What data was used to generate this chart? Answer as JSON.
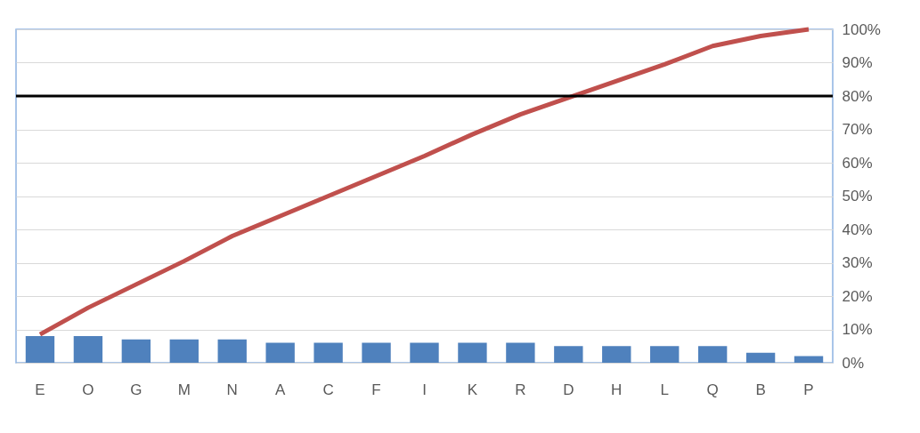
{
  "chart_data": {
    "type": "bar",
    "categories": [
      "E",
      "O",
      "G",
      "M",
      "N",
      "A",
      "C",
      "F",
      "I",
      "K",
      "R",
      "D",
      "H",
      "L",
      "Q",
      "B",
      "P"
    ],
    "series": [
      {
        "color": "#4f81bd",
        "values": [
          8,
          8,
          7,
          7,
          7,
          6,
          6,
          6,
          6,
          6,
          6,
          5,
          5,
          5,
          5,
          3,
          2
        ]
      },
      {
        "type": "line",
        "color": "#c0504d",
        "values": [
          8.5,
          16.5,
          23.5,
          30.5,
          38,
          44,
          50,
          56,
          62,
          68.5,
          74.5,
          79.5,
          84.5,
          89.5,
          95,
          98,
          100
        ]
      }
    ],
    "ylim": [
      0,
      100
    ],
    "yticks": [
      {
        "value": 0,
        "label": "0%"
      },
      {
        "value": 10,
        "label": "10%"
      },
      {
        "value": 20,
        "label": "20%"
      },
      {
        "value": 30,
        "label": "30%"
      },
      {
        "value": 40,
        "label": "40%"
      },
      {
        "value": 50,
        "label": "50%"
      },
      {
        "value": 60,
        "label": "60%"
      },
      {
        "value": 70,
        "label": "70%"
      },
      {
        "value": 80,
        "label": "80%"
      },
      {
        "value": 90,
        "label": "90%"
      },
      {
        "value": 100,
        "label": "100%"
      }
    ],
    "grid": "y",
    "ref_lines": [
      {
        "axis": "y",
        "value": 80,
        "color": "#000000"
      }
    ]
  }
}
